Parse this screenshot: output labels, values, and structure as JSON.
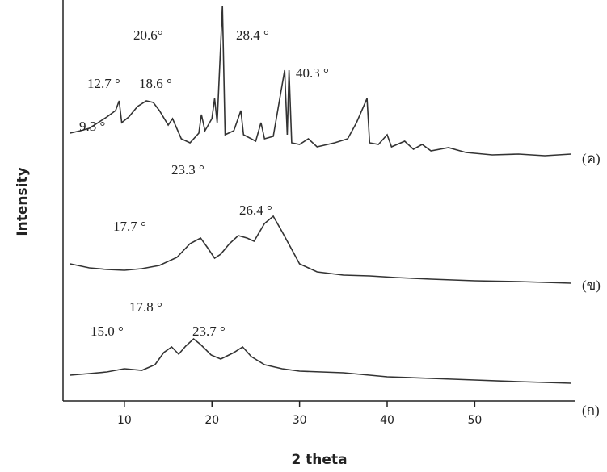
{
  "chart_data": {
    "type": "line",
    "x_label": "2 theta",
    "y_label": "Intensity",
    "xlim": [
      3,
      61.5
    ],
    "ylim": [
      0,
      500
    ],
    "xticks": [
      10,
      20,
      30,
      40,
      50
    ],
    "series": [
      {
        "name": "(ค)",
        "color": "#333333",
        "x": [
          3.8,
          5,
          6,
          7,
          8,
          9,
          9.4,
          9.7,
          10.5,
          11.5,
          12.5,
          13.3,
          14,
          15,
          15.5,
          16.5,
          17.5,
          18.5,
          18.8,
          19.2,
          20,
          20.3,
          20.6,
          21.2,
          21.5,
          22.5,
          23.3,
          23.6,
          25,
          25.6,
          26,
          27,
          28.3,
          28.6,
          28.8,
          29.1,
          30,
          31,
          32,
          34,
          35.5,
          36.5,
          37.7,
          38,
          39,
          40,
          40.5,
          42,
          43,
          44,
          45,
          47,
          49,
          52,
          55,
          58,
          61
        ],
        "values": [
          332,
          335,
          338,
          345,
          352,
          360,
          372,
          345,
          352,
          365,
          372,
          370,
          360,
          342,
          350,
          325,
          320,
          332,
          355,
          335,
          350,
          375,
          345,
          490,
          330,
          335,
          360,
          330,
          322,
          345,
          325,
          328,
          410,
          330,
          410,
          320,
          318,
          325,
          315,
          320,
          325,
          345,
          375,
          320,
          318,
          330,
          315,
          322,
          312,
          318,
          310,
          314,
          308,
          305,
          306,
          304,
          306
        ]
      },
      {
        "name": "(ข)",
        "color": "#333333",
        "x": [
          3.8,
          6,
          8,
          10,
          12,
          14,
          16,
          17.5,
          18.7,
          19.5,
          20.3,
          21,
          22,
          23,
          24,
          24.8,
          26,
          27,
          28,
          29,
          30,
          32,
          35,
          38,
          41,
          45,
          50,
          55,
          58,
          61
        ],
        "values": [
          170,
          165,
          163,
          162,
          164,
          168,
          178,
          195,
          202,
          190,
          177,
          182,
          195,
          205,
          202,
          198,
          220,
          229,
          210,
          190,
          170,
          160,
          156,
          155,
          153,
          151,
          149,
          148,
          147,
          146
        ]
      },
      {
        "name": "(ก)",
        "color": "#333333",
        "x": [
          3.8,
          6,
          8,
          10,
          12,
          13.5,
          14.5,
          15.4,
          16.2,
          17,
          17.9,
          18.7,
          19.9,
          21,
          22.5,
          23.5,
          24.5,
          26,
          28,
          30,
          35,
          40,
          45,
          50,
          55,
          61
        ],
        "values": [
          32,
          34,
          36,
          40,
          38,
          45,
          60,
          67,
          58,
          68,
          77,
          70,
          57,
          52,
          60,
          67,
          55,
          45,
          40,
          37,
          35,
          30,
          28,
          26,
          24,
          22
        ]
      }
    ],
    "annotations": [
      "20.6°",
      "28.4 °",
      "12.7 °",
      "18.6 °",
      "40.3 °",
      "9.3 °",
      "23.3 °",
      "26.4 °",
      "17.7 °",
      "17.8 °",
      "15.0 °",
      "23.7 °"
    ]
  }
}
